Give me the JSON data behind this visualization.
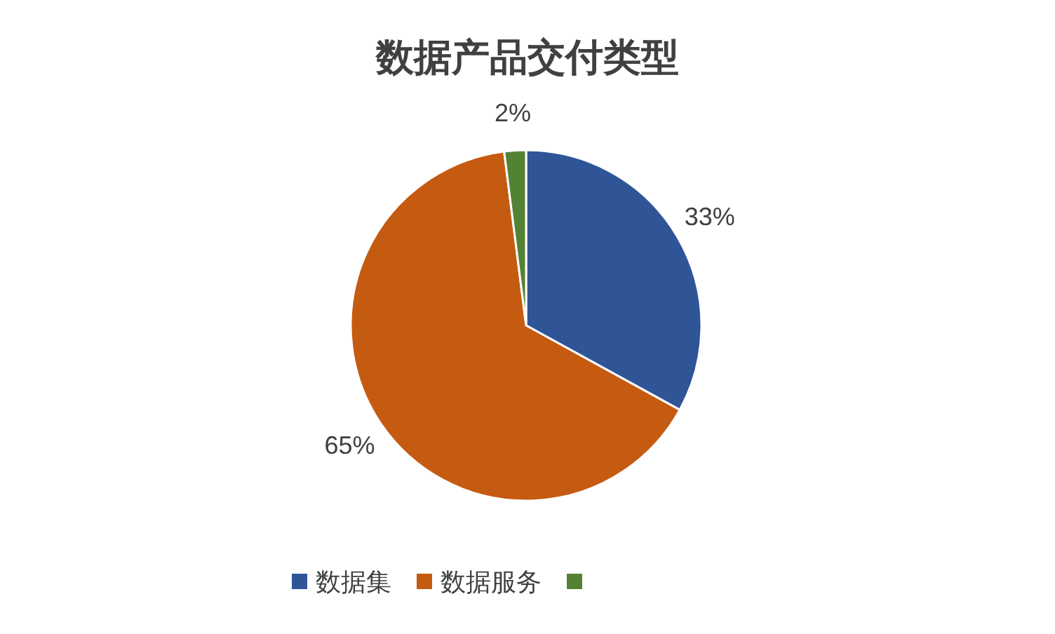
{
  "chart_data": {
    "type": "pie",
    "title": "数据产品交付类型",
    "categories": [
      "数据集",
      "数据服务",
      null
    ],
    "values": [
      33,
      65,
      2
    ],
    "colors": [
      "#2f5597",
      "#c55a11",
      "#548235"
    ],
    "value_labels": [
      "33%",
      "65%",
      "2%"
    ],
    "legend": "bottom"
  }
}
